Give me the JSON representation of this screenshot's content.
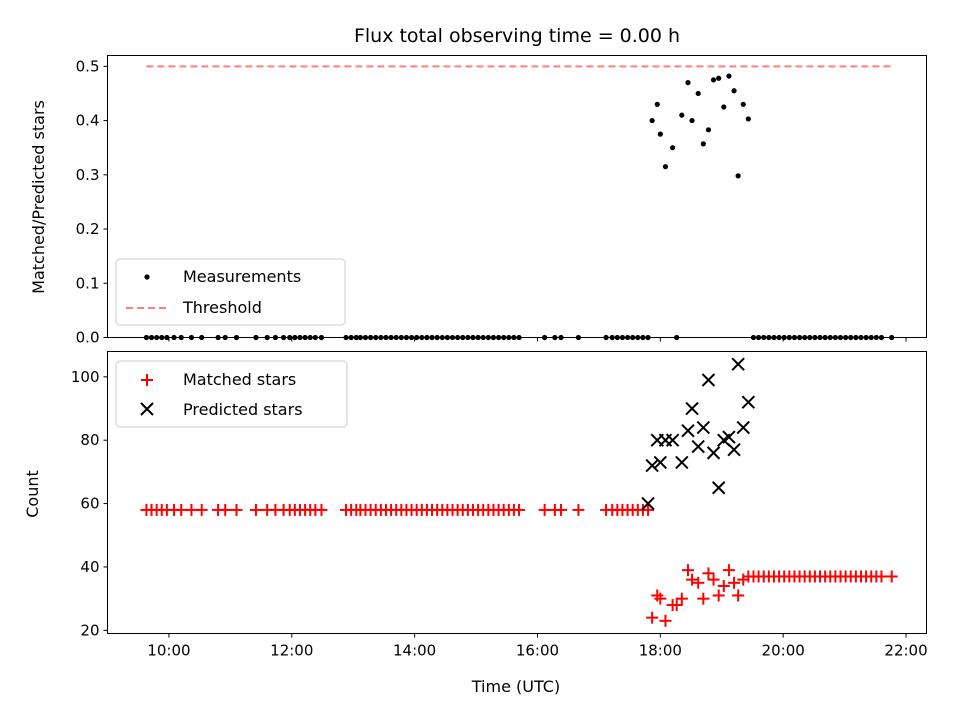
{
  "chart_data": [
    {
      "type": "scatter",
      "title": "Flux total observing time = 0.00 h",
      "xlabel": "",
      "ylabel": "Matched/Predicted stars",
      "xlim": [
        "09:00",
        "22:20"
      ],
      "ylim": [
        0,
        0.52
      ],
      "yticks": [
        "0.0",
        "0.1",
        "0.2",
        "0.3",
        "0.4",
        "0.5"
      ],
      "grid": false,
      "legend_position": "lower left",
      "series": [
        {
          "name": "Measurements",
          "style": "black dots",
          "color": "#000000",
          "points": [
            [
              "09:38",
              0
            ],
            [
              "09:43",
              0
            ],
            [
              "09:48",
              0
            ],
            [
              "09:53",
              0
            ],
            [
              "09:58",
              0
            ],
            [
              "10:05",
              0
            ],
            [
              "10:12",
              0
            ],
            [
              "10:22",
              0
            ],
            [
              "10:32",
              0
            ],
            [
              "10:48",
              0
            ],
            [
              "10:55",
              0
            ],
            [
              "11:06",
              0
            ],
            [
              "11:25",
              0
            ],
            [
              "11:36",
              0
            ],
            [
              "11:44",
              0
            ],
            [
              "11:52",
              0
            ],
            [
              "11:58",
              0
            ],
            [
              "12:03",
              0
            ],
            [
              "12:08",
              0
            ],
            [
              "12:13",
              0
            ],
            [
              "12:18",
              0
            ],
            [
              "12:23",
              0
            ],
            [
              "12:29",
              0
            ],
            [
              "12:53",
              0
            ],
            [
              "12:58",
              0
            ],
            [
              "13:03",
              0
            ],
            [
              "13:07",
              0
            ],
            [
              "13:12",
              0
            ],
            [
              "13:17",
              0
            ],
            [
              "13:22",
              0
            ],
            [
              "13:27",
              0
            ],
            [
              "13:32",
              0
            ],
            [
              "13:37",
              0
            ],
            [
              "13:42",
              0
            ],
            [
              "13:47",
              0
            ],
            [
              "13:52",
              0
            ],
            [
              "13:57",
              0
            ],
            [
              "14:02",
              0
            ],
            [
              "14:07",
              0
            ],
            [
              "14:12",
              0
            ],
            [
              "14:17",
              0
            ],
            [
              "14:22",
              0
            ],
            [
              "14:27",
              0
            ],
            [
              "14:32",
              0
            ],
            [
              "14:37",
              0
            ],
            [
              "14:42",
              0
            ],
            [
              "14:47",
              0
            ],
            [
              "14:52",
              0
            ],
            [
              "14:57",
              0
            ],
            [
              "15:02",
              0
            ],
            [
              "15:07",
              0
            ],
            [
              "15:12",
              0
            ],
            [
              "15:17",
              0
            ],
            [
              "15:22",
              0
            ],
            [
              "15:27",
              0
            ],
            [
              "15:32",
              0
            ],
            [
              "15:37",
              0
            ],
            [
              "15:42",
              0
            ],
            [
              "16:07",
              0
            ],
            [
              "16:17",
              0
            ],
            [
              "16:23",
              0
            ],
            [
              "16:40",
              0
            ],
            [
              "17:07",
              0
            ],
            [
              "17:13",
              0
            ],
            [
              "17:18",
              0
            ],
            [
              "17:23",
              0
            ],
            [
              "17:28",
              0
            ],
            [
              "17:33",
              0
            ],
            [
              "17:38",
              0
            ],
            [
              "17:43",
              0
            ],
            [
              "17:48",
              0
            ],
            [
              "17:52",
              0.4
            ],
            [
              "17:57",
              0.43
            ],
            [
              "18:00",
              0.375
            ],
            [
              "18:05",
              0.315
            ],
            [
              "18:12",
              0.35
            ],
            [
              "18:16",
              0
            ],
            [
              "18:21",
              0.41
            ],
            [
              "18:27",
              0.47
            ],
            [
              "18:31",
              0.4
            ],
            [
              "18:37",
              0.45
            ],
            [
              "18:42",
              0.357
            ],
            [
              "18:47",
              0.383
            ],
            [
              "18:52",
              0.475
            ],
            [
              "18:57",
              0.478
            ],
            [
              "19:02",
              0.425
            ],
            [
              "19:07",
              0.482
            ],
            [
              "19:12",
              0.455
            ],
            [
              "19:16",
              0.298
            ],
            [
              "19:21",
              0.43
            ],
            [
              "19:26",
              0.403
            ],
            [
              "19:31",
              0
            ],
            [
              "19:36",
              0
            ],
            [
              "19:41",
              0
            ],
            [
              "19:46",
              0
            ],
            [
              "19:51",
              0
            ],
            [
              "19:56",
              0
            ],
            [
              "20:01",
              0
            ],
            [
              "20:06",
              0
            ],
            [
              "20:11",
              0
            ],
            [
              "20:16",
              0
            ],
            [
              "20:21",
              0
            ],
            [
              "20:26",
              0
            ],
            [
              "20:31",
              0
            ],
            [
              "20:36",
              0
            ],
            [
              "20:41",
              0
            ],
            [
              "20:46",
              0
            ],
            [
              "20:51",
              0
            ],
            [
              "20:56",
              0
            ],
            [
              "21:01",
              0
            ],
            [
              "21:06",
              0
            ],
            [
              "21:11",
              0
            ],
            [
              "21:16",
              0
            ],
            [
              "21:21",
              0
            ],
            [
              "21:26",
              0
            ],
            [
              "21:31",
              0
            ],
            [
              "21:36",
              0
            ],
            [
              "21:46",
              0
            ]
          ]
        },
        {
          "name": "Threshold",
          "style": "dashed line",
          "color": "#ff7f7f",
          "points": [
            [
              "09:38",
              0.5
            ],
            [
              "21:46",
              0.5
            ]
          ]
        }
      ]
    },
    {
      "type": "scatter",
      "title": "",
      "xlabel": "Time (UTC)",
      "ylabel": "Count",
      "xlim": [
        "09:00",
        "22:20"
      ],
      "ylim": [
        19,
        108
      ],
      "yticks": [
        "20",
        "40",
        "60",
        "80",
        "100"
      ],
      "xticks": [
        "10:00",
        "12:00",
        "14:00",
        "16:00",
        "18:00",
        "20:00",
        "22:00"
      ],
      "grid": false,
      "legend_position": "upper left",
      "series": [
        {
          "name": "Matched stars",
          "style": "plus markers",
          "color": "#ff0000",
          "matched_baseline_points": {
            "times": [
              "09:38",
              "09:43",
              "09:48",
              "09:53",
              "09:58",
              "10:05",
              "10:12",
              "10:22",
              "10:32",
              "10:48",
              "10:55",
              "11:06",
              "11:25",
              "11:36",
              "11:44",
              "11:52",
              "11:58",
              "12:03",
              "12:08",
              "12:13",
              "12:18",
              "12:23",
              "12:29",
              "12:53",
              "12:58",
              "13:03",
              "13:07",
              "13:12",
              "13:17",
              "13:22",
              "13:27",
              "13:32",
              "13:37",
              "13:42",
              "13:47",
              "13:52",
              "13:57",
              "14:02",
              "14:07",
              "14:12",
              "14:17",
              "14:22",
              "14:27",
              "14:32",
              "14:37",
              "14:42",
              "14:47",
              "14:52",
              "14:57",
              "15:02",
              "15:07",
              "15:12",
              "15:17",
              "15:22",
              "15:27",
              "15:32",
              "15:37",
              "15:42",
              "16:07",
              "16:17",
              "16:23",
              "16:40",
              "17:07",
              "17:13",
              "17:18",
              "17:23",
              "17:28",
              "17:33",
              "17:38",
              "17:43",
              "17:48"
            ],
            "value": 58
          },
          "points": [
            [
              "17:52",
              24
            ],
            [
              "17:57",
              31
            ],
            [
              "18:00",
              30
            ],
            [
              "18:05",
              23
            ],
            [
              "18:12",
              28
            ],
            [
              "18:16",
              28
            ],
            [
              "18:21",
              30
            ],
            [
              "18:27",
              39
            ],
            [
              "18:31",
              36
            ],
            [
              "18:37",
              35
            ],
            [
              "18:42",
              30
            ],
            [
              "18:47",
              38
            ],
            [
              "18:52",
              36
            ],
            [
              "18:57",
              31
            ],
            [
              "19:02",
              34
            ],
            [
              "19:07",
              39
            ],
            [
              "19:12",
              35
            ],
            [
              "19:16",
              31
            ],
            [
              "19:21",
              36
            ],
            [
              "19:26",
              37
            ],
            [
              "19:31",
              37
            ],
            [
              "19:36",
              37
            ],
            [
              "19:41",
              37
            ],
            [
              "19:46",
              37
            ],
            [
              "19:51",
              37
            ],
            [
              "19:56",
              37
            ],
            [
              "20:01",
              37
            ],
            [
              "20:06",
              37
            ],
            [
              "20:11",
              37
            ],
            [
              "20:16",
              37
            ],
            [
              "20:21",
              37
            ],
            [
              "20:26",
              37
            ],
            [
              "20:31",
              37
            ],
            [
              "20:36",
              37
            ],
            [
              "20:41",
              37
            ],
            [
              "20:46",
              37
            ],
            [
              "20:51",
              37
            ],
            [
              "20:56",
              37
            ],
            [
              "21:01",
              37
            ],
            [
              "21:06",
              37
            ],
            [
              "21:11",
              37
            ],
            [
              "21:16",
              37
            ],
            [
              "21:21",
              37
            ],
            [
              "21:26",
              37
            ],
            [
              "21:31",
              37
            ],
            [
              "21:36",
              37
            ],
            [
              "21:46",
              37
            ]
          ]
        },
        {
          "name": "Predicted stars",
          "style": "x markers",
          "color": "#000000",
          "points": [
            [
              "17:48",
              60
            ],
            [
              "17:52",
              72
            ],
            [
              "17:57",
              80
            ],
            [
              "18:00",
              73
            ],
            [
              "18:05",
              80
            ],
            [
              "18:12",
              80
            ],
            [
              "18:21",
              73
            ],
            [
              "18:27",
              83
            ],
            [
              "18:31",
              90
            ],
            [
              "18:37",
              78
            ],
            [
              "18:42",
              84
            ],
            [
              "18:47",
              99
            ],
            [
              "18:52",
              76
            ],
            [
              "18:57",
              65
            ],
            [
              "19:02",
              80
            ],
            [
              "19:07",
              81
            ],
            [
              "19:12",
              77
            ],
            [
              "19:16",
              104
            ],
            [
              "19:21",
              84
            ],
            [
              "19:26",
              92
            ]
          ]
        }
      ]
    }
  ]
}
